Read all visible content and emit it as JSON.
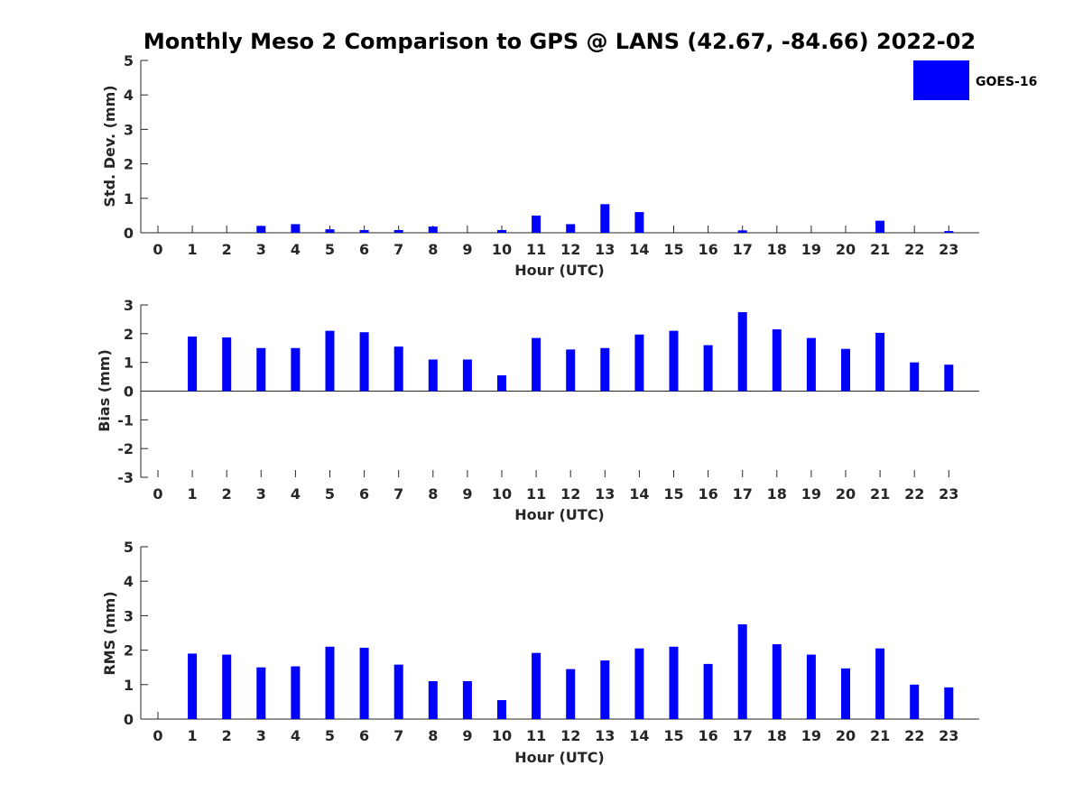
{
  "chart_data": {
    "title": "Monthly Meso 2 Comparison to GPS @ LANS (42.67, -84.66) 2022-02",
    "bar_color": "#0000ff",
    "legend": {
      "label": "GOES-16",
      "placement": "top-right"
    },
    "x": [
      0,
      1,
      2,
      3,
      4,
      5,
      6,
      7,
      8,
      9,
      10,
      11,
      12,
      13,
      14,
      15,
      16,
      17,
      18,
      19,
      20,
      21,
      22,
      23
    ],
    "panels": [
      {
        "type": "bar",
        "xlabel": "Hour (UTC)",
        "ylabel": "Std. Dev. (mm)",
        "ylim": [
          0,
          5
        ],
        "yticks": [
          0,
          1,
          2,
          3,
          4,
          5
        ],
        "series": [
          {
            "name": "GOES-16",
            "values": [
              0,
              0,
              0,
              0.2,
              0.25,
              0.1,
              0.08,
              0.08,
              0.18,
              0,
              0.08,
              0.5,
              0.25,
              0.83,
              0.6,
              0,
              0,
              0.07,
              0,
              0,
              0,
              0.35,
              0,
              0.05
            ]
          }
        ]
      },
      {
        "type": "bar",
        "xlabel": "Hour (UTC)",
        "ylabel": "Bias (mm)",
        "ylim": [
          -3,
          3
        ],
        "yticks": [
          -3,
          -2,
          -1,
          0,
          1,
          2,
          3
        ],
        "series": [
          {
            "name": "GOES-16",
            "values": [
              0,
              1.9,
              1.87,
              1.5,
              1.5,
              2.1,
              2.05,
              1.55,
              1.1,
              1.1,
              0.55,
              1.85,
              1.45,
              1.5,
              1.97,
              2.1,
              1.6,
              2.75,
              2.15,
              1.85,
              1.47,
              2.03,
              1.0,
              0.92
            ]
          }
        ]
      },
      {
        "type": "bar",
        "xlabel": "Hour (UTC)",
        "ylabel": "RMS (mm)",
        "ylim": [
          0,
          5
        ],
        "yticks": [
          0,
          1,
          2,
          3,
          4,
          5
        ],
        "series": [
          {
            "name": "GOES-16",
            "values": [
              0,
              1.9,
              1.87,
              1.5,
              1.53,
              2.1,
              2.07,
              1.58,
              1.1,
              1.1,
              0.55,
              1.92,
              1.45,
              1.7,
              2.05,
              2.1,
              1.6,
              2.75,
              2.17,
              1.87,
              1.47,
              2.05,
              1.0,
              0.92
            ]
          }
        ]
      }
    ]
  }
}
